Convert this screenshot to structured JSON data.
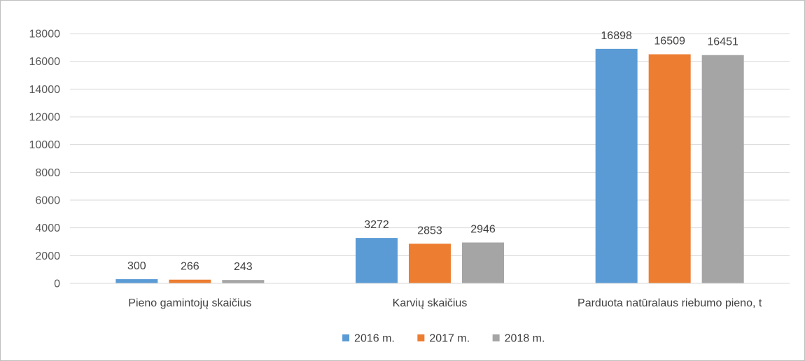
{
  "chart_data": {
    "type": "bar",
    "categories": [
      "Pieno gamintojų skaičius",
      "Karvių skaičius",
      "Parduota natūralaus riebumo pieno, t"
    ],
    "series": [
      {
        "name": "2016 m.",
        "color": "#5b9bd5",
        "values": [
          300,
          3272,
          16898
        ]
      },
      {
        "name": "2017 m.",
        "color": "#ed7d31",
        "values": [
          266,
          2853,
          16509
        ]
      },
      {
        "name": "2018 m.",
        "color": "#a5a5a5",
        "values": [
          243,
          2946,
          16451
        ]
      }
    ],
    "ylim": [
      0,
      18000
    ],
    "yticks": [
      0,
      2000,
      4000,
      6000,
      8000,
      10000,
      12000,
      14000,
      16000,
      18000
    ],
    "grid": true,
    "legend": "bottom",
    "data_labels": true
  }
}
